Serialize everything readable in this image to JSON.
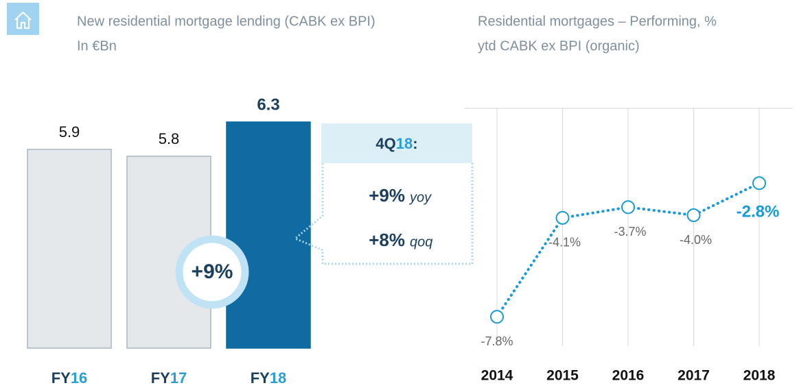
{
  "chart_data": [
    {
      "type": "bar",
      "title": "New residential mortgage lending (CABK ex BPI)",
      "subtitle": "In €Bn",
      "categories": [
        "FY16",
        "FY17",
        "FY18"
      ],
      "values": [
        5.9,
        5.8,
        6.3
      ],
      "colors": [
        "#e5e8eb",
        "#e5e8eb",
        "#0f6ba1"
      ],
      "ylim": [
        3,
        6.5
      ],
      "circle_label": "+9%",
      "callout": {
        "title": "4Q18:",
        "lines": [
          {
            "value": "+9%",
            "unit": "yoy"
          },
          {
            "value": "+8%",
            "unit": "qoq"
          }
        ]
      }
    },
    {
      "type": "line",
      "title": "Residential mortgages – Performing, %",
      "subtitle": "ytd CABK ex BPI (organic)",
      "categories": [
        "2014",
        "2015",
        "2016",
        "2017",
        "2018"
      ],
      "values": [
        -7.8,
        -4.1,
        -3.7,
        -4.0,
        -2.8
      ],
      "value_labels": [
        "-7.8%",
        "-4.1%",
        "-3.7%",
        "-4.0%",
        "-2.8%"
      ],
      "color": "#1a9ad6",
      "ylim": [
        -9,
        0
      ]
    }
  ]
}
